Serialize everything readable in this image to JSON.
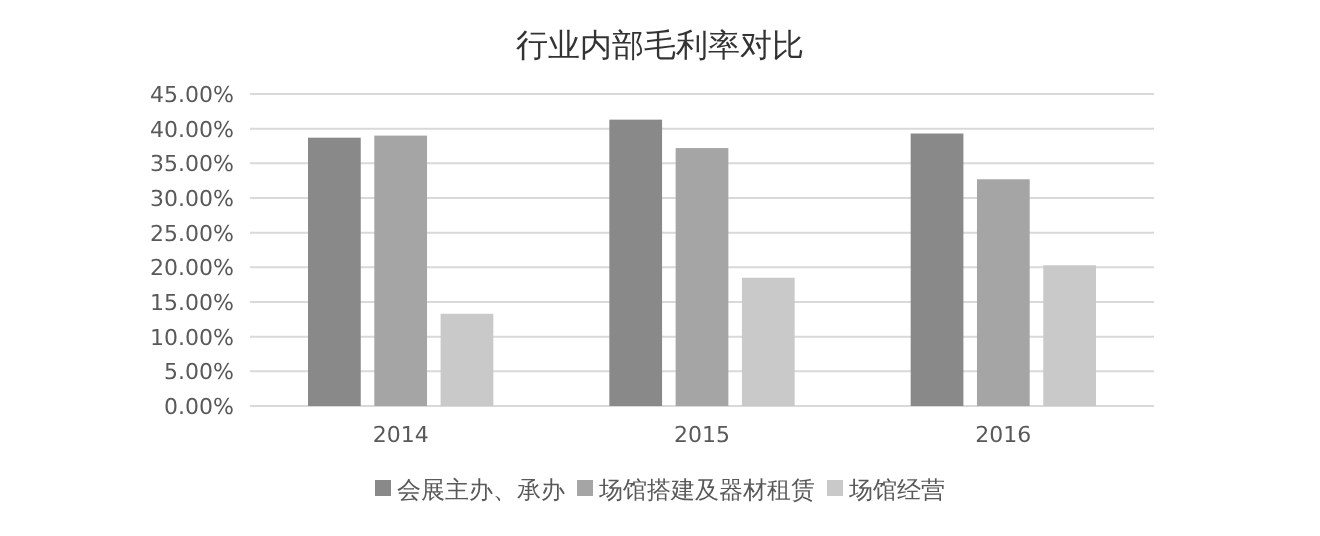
{
  "chart_data": {
    "type": "bar",
    "title": "行业内部毛利率对比",
    "categories": [
      "2014",
      "2015",
      "2016"
    ],
    "series": [
      {
        "name": "会展主办、承办",
        "color": "#898989",
        "values": [
          38.7,
          41.3,
          39.3
        ]
      },
      {
        "name": "场馆搭建及器材租赁",
        "color": "#a5a5a5",
        "values": [
          39.0,
          37.2,
          32.7
        ]
      },
      {
        "name": "场馆经营",
        "color": "#c9c9c9",
        "values": [
          13.3,
          18.5,
          20.3
        ]
      }
    ],
    "ylim": [
      0,
      45
    ],
    "yticks": [
      {
        "value": 0,
        "label": "0.00%"
      },
      {
        "value": 5,
        "label": "5.00%"
      },
      {
        "value": 10,
        "label": "10.00%"
      },
      {
        "value": 15,
        "label": "15.00%"
      },
      {
        "value": 20,
        "label": "20.00%"
      },
      {
        "value": 25,
        "label": "25.00%"
      },
      {
        "value": 30,
        "label": "30.00%"
      },
      {
        "value": 35,
        "label": "35.00%"
      },
      {
        "value": 40,
        "label": "40.00%"
      },
      {
        "value": 45,
        "label": "45.00%"
      }
    ],
    "grid": "y",
    "legend": "bottom"
  }
}
